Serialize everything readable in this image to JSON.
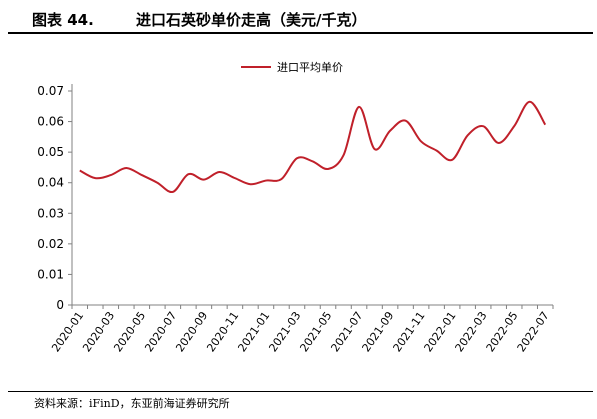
{
  "figure": {
    "number": "图表 44.",
    "title": "进口石英砂单价走高（美元/千克）",
    "source": "资料来源：iFinD，东亚前海证券研究所"
  },
  "colors": {
    "series": "#c0202a",
    "axis": "#808080",
    "text": "#000000"
  },
  "chart_data": {
    "type": "line",
    "title": "",
    "xlabel": "",
    "ylabel": "",
    "ylim": [
      0,
      0.07
    ],
    "yticks": [
      "0",
      "0.01",
      "0.02",
      "0.03",
      "0.04",
      "0.05",
      "0.06",
      "0.07"
    ],
    "xticks": [
      "2020-01",
      "2020-03",
      "2020-05",
      "2020-07",
      "2020-09",
      "2020-11",
      "2021-01",
      "2021-03",
      "2021-05",
      "2021-07",
      "2021-09",
      "2021-11",
      "2022-01",
      "2022-03",
      "2022-05",
      "2022-07"
    ],
    "grid": false,
    "legend": "top-center",
    "x": [
      "2020-01",
      "2020-02",
      "2020-03",
      "2020-04",
      "2020-05",
      "2020-06",
      "2020-07",
      "2020-08",
      "2020-09",
      "2020-10",
      "2020-11",
      "2020-12",
      "2021-01",
      "2021-02",
      "2021-03",
      "2021-04",
      "2021-05",
      "2021-06",
      "2021-07",
      "2021-08",
      "2021-09",
      "2021-10",
      "2021-11",
      "2021-12",
      "2022-01",
      "2022-02",
      "2022-03",
      "2022-04",
      "2022-05",
      "2022-06",
      "2022-07"
    ],
    "series": [
      {
        "name": "进口平均单价",
        "values": [
          0.044,
          0.0415,
          0.0425,
          0.0448,
          0.0425,
          0.04,
          0.037,
          0.0428,
          0.041,
          0.0435,
          0.0415,
          0.0395,
          0.0407,
          0.0412,
          0.048,
          0.047,
          0.0445,
          0.049,
          0.0648,
          0.051,
          0.057,
          0.0603,
          0.0535,
          0.0505,
          0.0475,
          0.0555,
          0.0585,
          0.053,
          0.0585,
          0.0665,
          0.059
        ]
      }
    ]
  }
}
